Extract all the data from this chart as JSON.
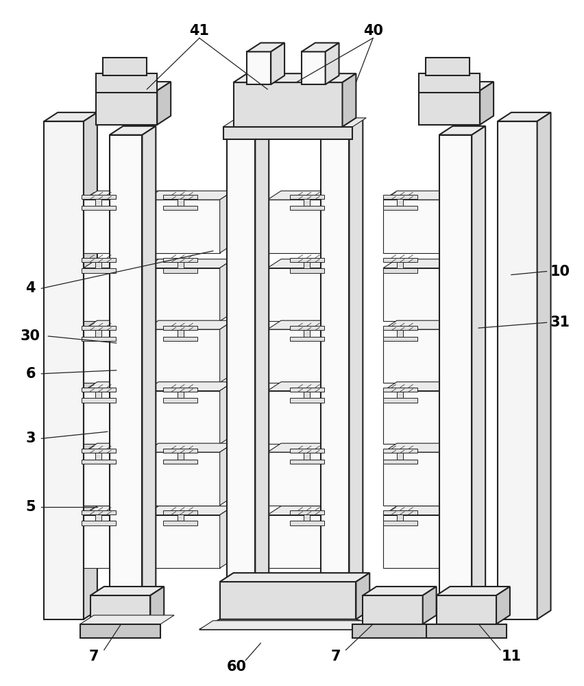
{
  "bg_color": "#ffffff",
  "line_color": "#222222",
  "lw_main": 1.5,
  "lw_thin": 0.8,
  "label_fontsize": 15,
  "fig_width": 8.52,
  "fig_height": 10.0,
  "face_light": "#f5f5f5",
  "face_mid": "#e0e0e0",
  "face_dark": "#c8c8c8",
  "face_very_light": "#fafafa",
  "face_side": "#d5d5d5",
  "face_top": "#ebebeb"
}
